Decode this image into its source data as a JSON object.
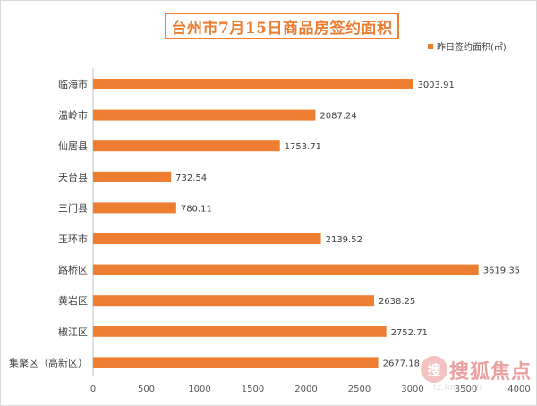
{
  "chart_data": {
    "type": "bar",
    "orientation": "horizontal",
    "title": "台州市7月15日商品房签约面积",
    "categories": [
      "临海市",
      "温岭市",
      "仙居县",
      "天台县",
      "三门县",
      "玉环市",
      "路桥区",
      "黄岩区",
      "椒江区",
      "集聚区（高新区）"
    ],
    "series": [
      {
        "name": "昨日签约面积(㎡)",
        "color": "#ED7D31",
        "values": [
          3003.91,
          2087.24,
          1753.71,
          732.54,
          780.11,
          2139.52,
          3619.35,
          2638.25,
          2752.71,
          2677.18
        ],
        "labels": [
          "3003.91",
          "2087.24",
          "1753.71",
          "732.54",
          "780.11",
          "2139.52",
          "3619.35",
          "2638.25",
          "2752.71",
          "2677.18"
        ]
      }
    ],
    "x_ticks": [
      "0",
      "500",
      "1000",
      "1500",
      "2000",
      "2500",
      "3000",
      "3500",
      "4000"
    ],
    "xlim": [
      0,
      4000
    ],
    "grid": false,
    "legend_position": "top-right"
  },
  "watermark": {
    "logo_text": "搜",
    "text": "搜狐焦点",
    "url": "tz.focus.cn"
  }
}
